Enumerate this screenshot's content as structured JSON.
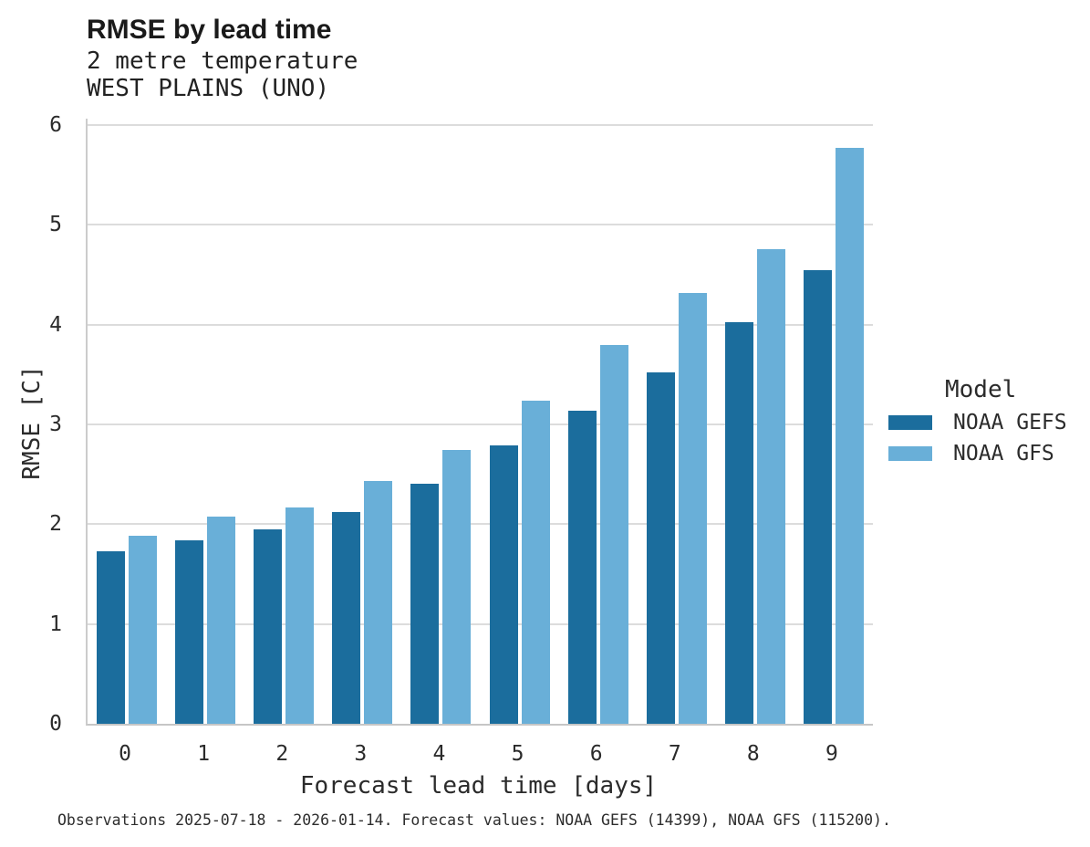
{
  "header": {
    "title": "RMSE by lead time",
    "subtitle1": "2 metre temperature",
    "subtitle2": "WEST PLAINS (UNO)"
  },
  "axes": {
    "x_title": "Forecast lead time [days]",
    "y_title": "RMSE [C]"
  },
  "legend": {
    "title": "Model",
    "items": [
      {
        "label": "NOAA GEFS",
        "color": "#1b6d9d"
      },
      {
        "label": "NOAA GFS",
        "color": "#69afd8"
      }
    ]
  },
  "caption": "Observations 2025-07-18 - 2026-01-14. Forecast values: NOAA GEFS (14399), NOAA GFS (115200).",
  "chart_data": {
    "type": "bar",
    "title": "RMSE by lead time",
    "subtitle": [
      "2 metre temperature",
      "WEST PLAINS (UNO)"
    ],
    "xlabel": "Forecast lead time [days]",
    "ylabel": "RMSE [C]",
    "categories": [
      "0",
      "1",
      "2",
      "3",
      "4",
      "5",
      "6",
      "7",
      "8",
      "9"
    ],
    "series": [
      {
        "name": "NOAA GEFS",
        "color": "#1b6d9d",
        "values": [
          1.73,
          1.84,
          1.95,
          2.12,
          2.41,
          2.79,
          3.14,
          3.52,
          4.02,
          4.55
        ]
      },
      {
        "name": "NOAA GFS",
        "color": "#69afd8",
        "values": [
          1.88,
          2.08,
          2.17,
          2.43,
          2.74,
          3.24,
          3.8,
          4.32,
          4.76,
          5.77
        ]
      }
    ],
    "ylim": [
      0,
      6
    ],
    "yticks": [
      0,
      1,
      2,
      3,
      4,
      5,
      6
    ],
    "grid": true,
    "legend_title": "Model",
    "legend_position": "right",
    "gridline_color": "#dcdcdc"
  }
}
